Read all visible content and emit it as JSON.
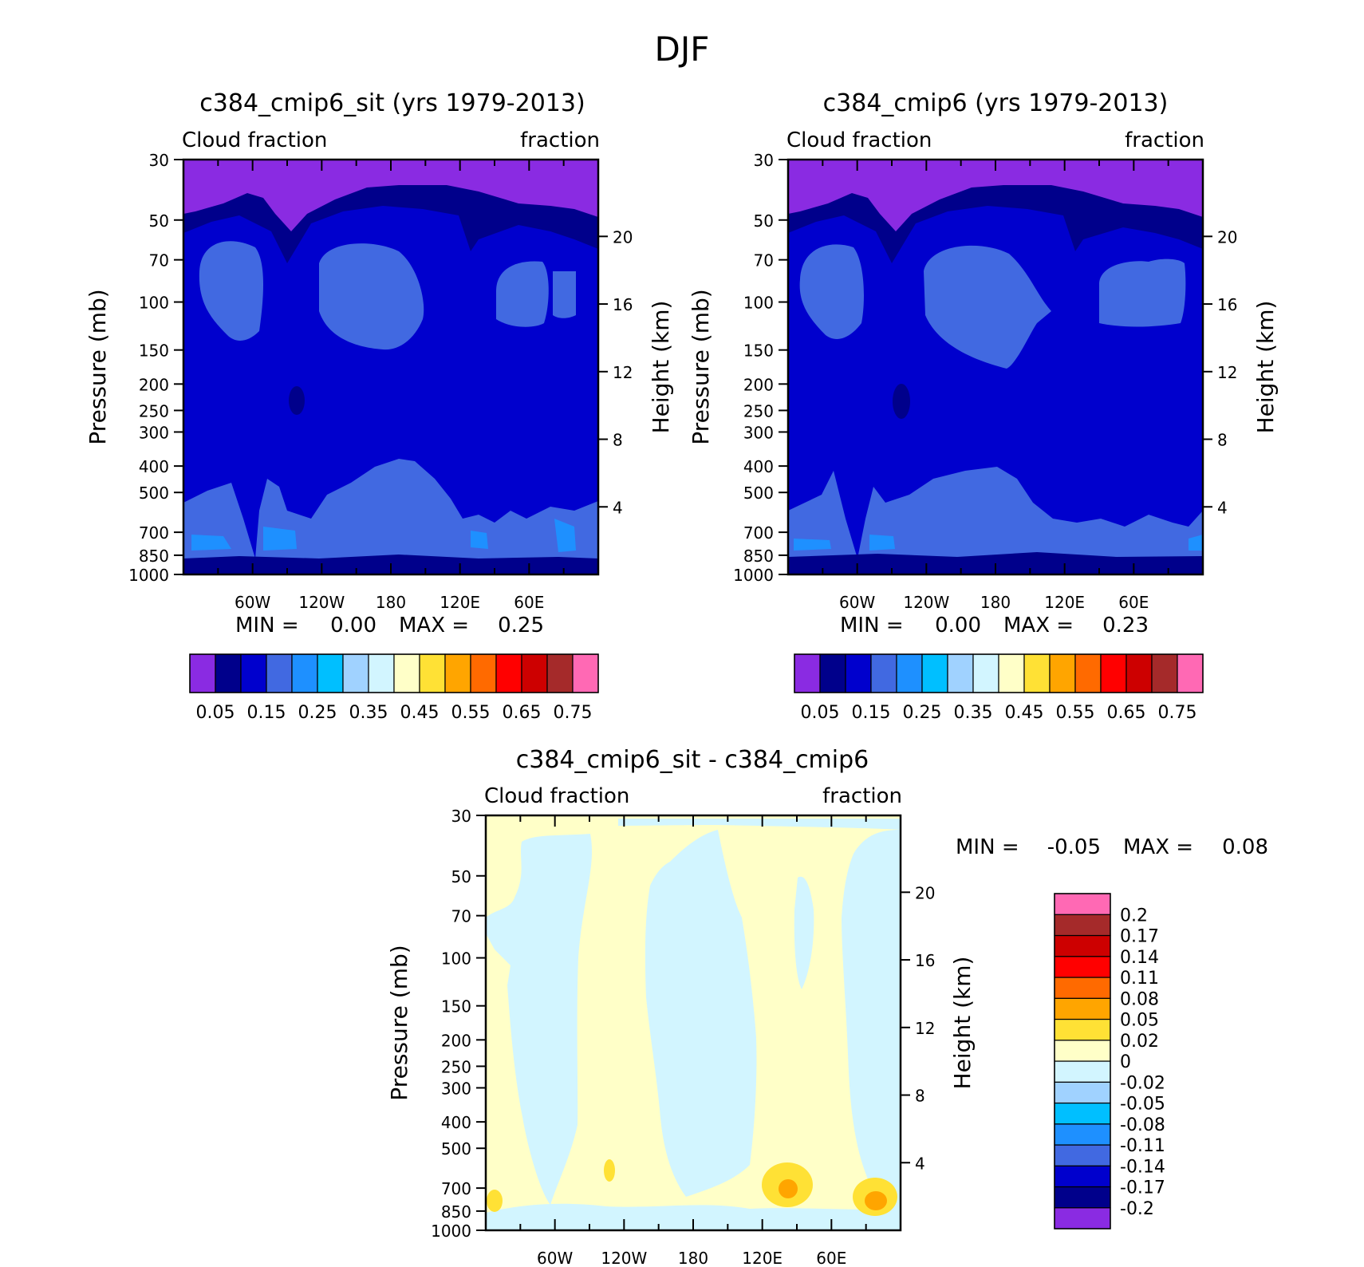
{
  "figure": {
    "season": "DJF",
    "colors": {
      "absolute_palette": [
        "#8a2be2",
        "#00008b",
        "#0000cd",
        "#4169e1",
        "#1e90ff",
        "#00bfff",
        "#a0d2ff",
        "#d2f5ff",
        "#ffffc8",
        "#ffe135",
        "#ffa500",
        "#ff6a00",
        "#ff0000",
        "#cd0000",
        "#a52a2a",
        "#ff69b4"
      ],
      "diff_palette": [
        "#8a2be2",
        "#00008b",
        "#0000cd",
        "#4169e1",
        "#1e90ff",
        "#00bfff",
        "#a0d2ff",
        "#d2f5ff",
        "#ffffc8",
        "#ffe135",
        "#ffa500",
        "#ff6a00",
        "#ff0000",
        "#cd0000",
        "#a52a2a",
        "#ff69b4"
      ]
    }
  },
  "chart_data": [
    {
      "type": "heatmap",
      "title": "c384_cmip6_sit (yrs 1979-2013)",
      "left_label": "Cloud fraction",
      "right_label": "fraction",
      "ylabel": "Pressure (mb)",
      "y2label": "Height (km)",
      "x_ticks": [
        "60W",
        "120W",
        "180",
        "120E",
        "60E"
      ],
      "y_ticks": [
        30,
        50,
        70,
        100,
        150,
        200,
        250,
        300,
        400,
        500,
        700,
        850,
        1000
      ],
      "y_tick_labels": [
        "30",
        "50",
        "70",
        "100",
        "150",
        "200",
        "250",
        "300",
        "400",
        "500",
        "700",
        "850",
        "1000"
      ],
      "y2_ticks": [
        20,
        16,
        12,
        8,
        4
      ],
      "y2_tick_labels": [
        "20",
        "16",
        "12",
        "8",
        "4"
      ],
      "ylim": [
        1000,
        30
      ],
      "min_label": "MIN =",
      "min_value": "0.00",
      "max_label": "MAX =",
      "max_value": "0.25",
      "colorbar_labels": [
        "0.05",
        "0.15",
        "0.25",
        "0.35",
        "0.45",
        "0.55",
        "0.65",
        "0.75"
      ]
    },
    {
      "type": "heatmap",
      "title": "c384_cmip6 (yrs 1979-2013)",
      "left_label": "Cloud fraction",
      "right_label": "fraction",
      "ylabel": "Pressure (mb)",
      "y2label": "Height (km)",
      "x_ticks": [
        "60W",
        "120W",
        "180",
        "120E",
        "60E"
      ],
      "y_ticks": [
        30,
        50,
        70,
        100,
        150,
        200,
        250,
        300,
        400,
        500,
        700,
        850,
        1000
      ],
      "y_tick_labels": [
        "30",
        "50",
        "70",
        "100",
        "150",
        "200",
        "250",
        "300",
        "400",
        "500",
        "700",
        "850",
        "1000"
      ],
      "y2_ticks": [
        20,
        16,
        12,
        8,
        4
      ],
      "y2_tick_labels": [
        "20",
        "16",
        "12",
        "8",
        "4"
      ],
      "ylim": [
        1000,
        30
      ],
      "min_label": "MIN =",
      "min_value": "0.00",
      "max_label": "MAX =",
      "max_value": "0.23",
      "colorbar_labels": [
        "0.05",
        "0.15",
        "0.25",
        "0.35",
        "0.45",
        "0.55",
        "0.65",
        "0.75"
      ]
    },
    {
      "type": "heatmap",
      "title": "c384_cmip6_sit - c384_cmip6",
      "left_label": "Cloud fraction",
      "right_label": "fraction",
      "ylabel": "Pressure (mb)",
      "y2label": "Height (km)",
      "x_ticks": [
        "60W",
        "120W",
        "180",
        "120E",
        "60E"
      ],
      "y_ticks": [
        30,
        50,
        70,
        100,
        150,
        200,
        250,
        300,
        400,
        500,
        700,
        850,
        1000
      ],
      "y_tick_labels": [
        "30",
        "50",
        "70",
        "100",
        "150",
        "200",
        "250",
        "300",
        "400",
        "500",
        "700",
        "850",
        "1000"
      ],
      "y2_ticks": [
        20,
        16,
        12,
        8,
        4
      ],
      "y2_tick_labels": [
        "20",
        "16",
        "12",
        "8",
        "4"
      ],
      "ylim": [
        1000,
        30
      ],
      "min_label": "MIN =",
      "min_value": "-0.05",
      "max_label": "MAX =",
      "max_value": "0.08",
      "colorbar_labels": [
        "0.2",
        "0.17",
        "0.14",
        "0.11",
        "0.08",
        "0.05",
        "0.02",
        "0",
        "-0.02",
        "-0.05",
        "-0.08",
        "-0.11",
        "-0.14",
        "-0.17",
        "-0.2"
      ]
    }
  ]
}
